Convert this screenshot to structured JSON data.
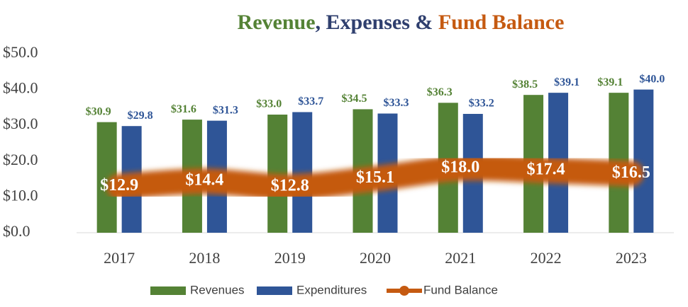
{
  "chart_data": {
    "type": "bar",
    "title_parts": [
      {
        "text": "Revenue",
        "color": "#548235"
      },
      {
        "text": ", Expenses & ",
        "color": "#2f3f6e"
      },
      {
        "text": "Fund Balance",
        "color": "#c55a11"
      }
    ],
    "categories": [
      "2017",
      "2018",
      "2019",
      "2020",
      "2021",
      "2022",
      "2023"
    ],
    "series": [
      {
        "name": "Revenues",
        "type": "bar",
        "color": "#548235",
        "values": [
          30.9,
          31.6,
          33.0,
          34.5,
          36.3,
          38.5,
          39.1
        ],
        "value_labels": [
          "$30.9",
          "$31.6",
          "$33.0",
          "$34.5",
          "$36.3",
          "$38.5",
          "$39.1"
        ]
      },
      {
        "name": "Expenditures",
        "type": "bar",
        "color": "#2f5597",
        "values": [
          29.8,
          31.3,
          33.7,
          33.3,
          33.2,
          39.1,
          40.0
        ],
        "value_labels": [
          "$29.8",
          "$31.3",
          "$33.7",
          "$33.3",
          "$33.2",
          "$39.1",
          "$40.0"
        ]
      },
      {
        "name": "Fund Balance",
        "type": "line",
        "color": "#c55a11",
        "values": [
          12.9,
          14.4,
          12.8,
          15.1,
          18.0,
          17.4,
          16.5
        ],
        "value_labels": [
          "$12.9",
          "$14.4",
          "$12.8",
          "$15.1",
          "$18.0",
          "$17.4",
          "$16.5"
        ]
      }
    ],
    "ylim": [
      0,
      50
    ],
    "yticks": [
      {
        "value": 0,
        "label": "$0.0"
      },
      {
        "value": 10,
        "label": "$10.0"
      },
      {
        "value": 20,
        "label": "$20.0"
      },
      {
        "value": 30,
        "label": "$30.0"
      },
      {
        "value": 40,
        "label": "$40.0"
      },
      {
        "value": 50,
        "label": "$50.0"
      }
    ],
    "legend": "bottom"
  }
}
